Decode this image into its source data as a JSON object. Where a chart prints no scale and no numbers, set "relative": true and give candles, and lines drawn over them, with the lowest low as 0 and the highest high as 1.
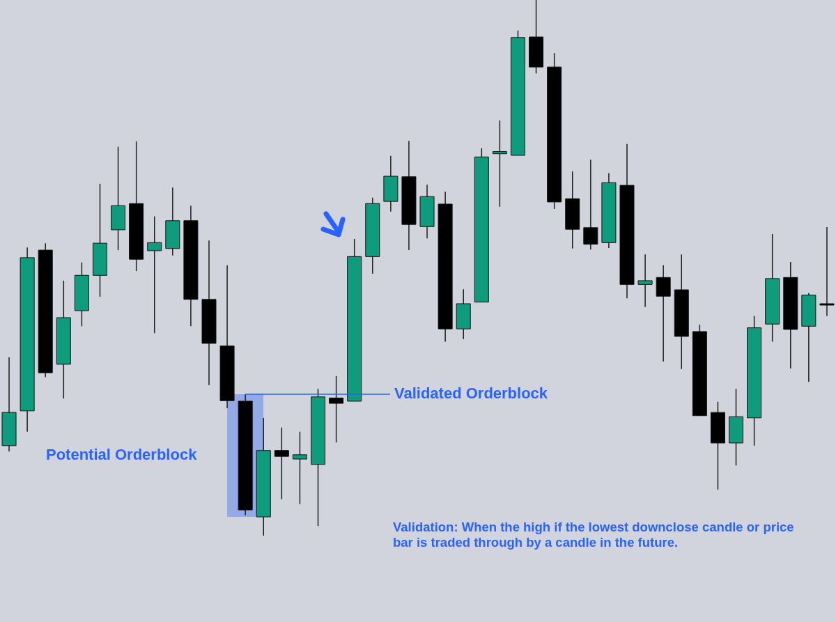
{
  "chart_data": {
    "type": "candlestick",
    "relative": true,
    "categories": [
      null,
      null,
      null,
      null,
      null,
      null,
      null,
      null,
      null,
      null,
      null,
      null,
      null,
      null,
      null,
      null,
      null,
      null,
      null,
      null,
      null,
      null,
      null,
      null,
      null,
      null,
      null,
      null,
      null,
      null,
      null,
      null,
      null,
      null,
      null,
      null,
      null,
      null,
      null,
      null,
      null,
      null,
      null,
      null,
      null,
      null
    ],
    "series": [
      {
        "colors": [
          "#0e9b7e",
          "#0e9b7e",
          "#000000",
          "#0e9b7e",
          "#0e9b7e",
          "#0e9b7e",
          "#0e9b7e",
          "#000000",
          "#0e9b7e",
          "#0e9b7e",
          "#000000",
          "#000000",
          "#000000",
          "#000000",
          "#0e9b7e",
          "#000000",
          "#0e9b7e",
          "#0e9b7e",
          "#000000",
          "#0e9b7e",
          "#0e9b7e",
          "#0e9b7e",
          "#000000",
          "#0e9b7e",
          "#000000",
          "#0e9b7e",
          "#0e9b7e",
          "#0e9b7e",
          "#0e9b7e",
          "#000000",
          "#000000",
          "#000000",
          "#000000",
          "#0e9b7e",
          "#000000",
          "#0e9b7e",
          "#000000",
          "#000000",
          "#000000",
          "#000000",
          "#0e9b7e",
          "#0e9b7e",
          "#0e9b7e",
          "#000000",
          "#0e9b7e",
          "#000000"
        ],
        "ohlc": [
          [
            0.168,
            0.333,
            0.157,
            0.23
          ],
          [
            0.233,
            0.538,
            0.194,
            0.519
          ],
          [
            0.533,
            0.546,
            0.296,
            0.304
          ],
          [
            0.32,
            0.476,
            0.256,
            0.407
          ],
          [
            0.42,
            0.51,
            0.391,
            0.486
          ],
          [
            0.486,
            0.657,
            0.446,
            0.546
          ],
          [
            0.571,
            0.726,
            0.533,
            0.616
          ],
          [
            0.62,
            0.736,
            0.494,
            0.516
          ],
          [
            0.532,
            0.596,
            0.378,
            0.547
          ],
          [
            0.536,
            0.65,
            0.523,
            0.588
          ],
          [
            0.588,
            0.616,
            0.391,
            0.441
          ],
          [
            0.441,
            0.551,
            0.281,
            0.359
          ],
          [
            0.354,
            0.505,
            0.238,
            0.252
          ],
          [
            0.251,
            0.264,
            0.038,
            0.048
          ],
          [
            0.035,
            0.22,
            0.0,
            0.159
          ],
          [
            0.159,
            0.202,
            0.068,
            0.148
          ],
          [
            0.143,
            0.194,
            0.059,
            0.151
          ],
          [
            0.133,
            0.274,
            0.018,
            0.259
          ],
          [
            0.257,
            0.298,
            0.174,
            0.247
          ],
          [
            0.251,
            0.554,
            0.251,
            0.521
          ],
          [
            0.521,
            0.631,
            0.489,
            0.62
          ],
          [
            0.624,
            0.709,
            0.605,
            0.671
          ],
          [
            0.67,
            0.737,
            0.533,
            0.581
          ],
          [
            0.577,
            0.655,
            0.555,
            0.633
          ],
          [
            0.619,
            0.642,
            0.362,
            0.386
          ],
          [
            0.386,
            0.46,
            0.367,
            0.433
          ],
          [
            0.436,
            0.723,
            0.436,
            0.707
          ],
          [
            0.713,
            0.775,
            0.614,
            0.717
          ],
          [
            0.71,
            0.943,
            0.71,
            0.93
          ],
          [
            0.931,
            1.0,
            0.863,
            0.875
          ],
          [
            0.875,
            0.901,
            0.61,
            0.623
          ],
          [
            0.629,
            0.68,
            0.536,
            0.572
          ],
          [
            0.575,
            0.702,
            0.534,
            0.544
          ],
          [
            0.547,
            0.677,
            0.537,
            0.659
          ],
          [
            0.654,
            0.731,
            0.443,
            0.469
          ],
          [
            0.469,
            0.525,
            0.427,
            0.476
          ],
          [
            0.482,
            0.505,
            0.325,
            0.447
          ],
          [
            0.459,
            0.525,
            0.311,
            0.372
          ],
          [
            0.381,
            0.394,
            0.224,
            0.224
          ],
          [
            0.23,
            0.25,
            0.086,
            0.173
          ],
          [
            0.173,
            0.274,
            0.131,
            0.222
          ],
          [
            0.22,
            0.41,
            0.168,
            0.388
          ],
          [
            0.395,
            0.563,
            0.362,
            0.48
          ],
          [
            0.482,
            0.511,
            0.312,
            0.385
          ],
          [
            0.391,
            0.453,
            0.287,
            0.449
          ],
          [
            0.433,
            0.576,
            0.41,
            0.433
          ]
        ]
      }
    ],
    "annotations": [
      "Potential Orderblock",
      "Validated Orderblock",
      "Validation: When the high if the lowest downclose candle or price bar is traded through by a candle in the future."
    ]
  }
}
